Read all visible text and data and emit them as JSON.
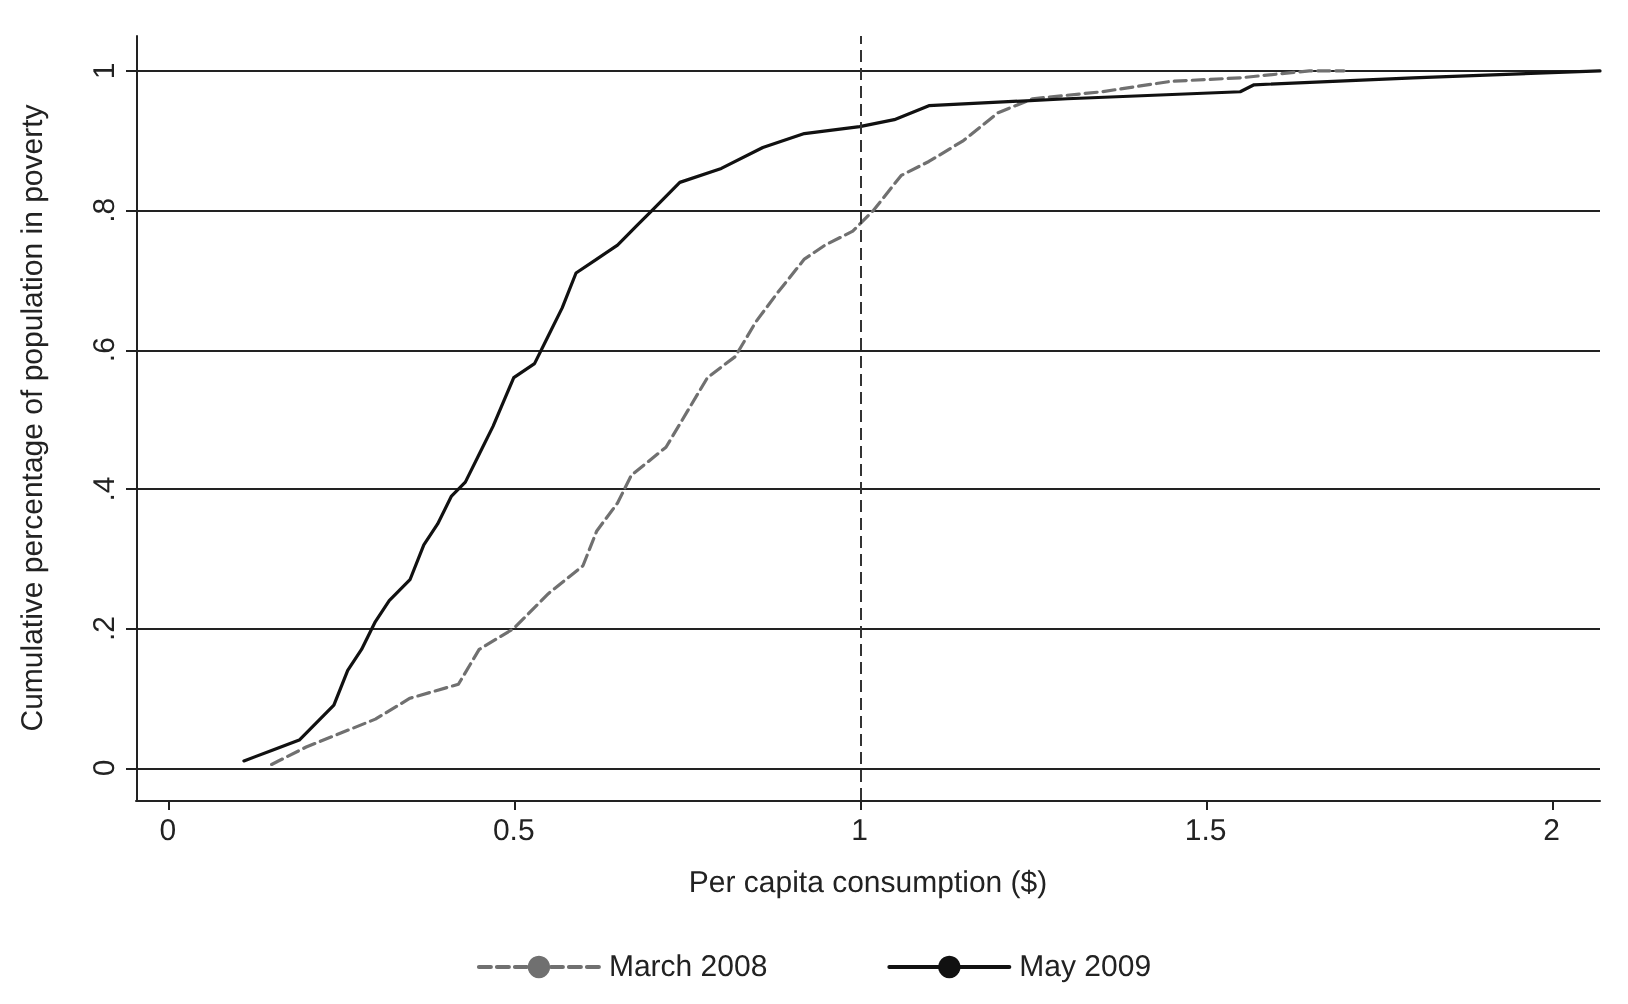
{
  "chart_data": {
    "type": "line",
    "xlabel": "Per capita consumption ($)",
    "ylabel": "Cumulative percentage of population in poverty",
    "xlim": [
      -0.046,
      2.07
    ],
    "xticks": [
      0,
      0.5,
      1,
      1.5,
      2
    ],
    "ylim": [
      -0.046,
      1.05
    ],
    "yticks": [
      0,
      {
        "value": 0.2,
        "label": ".2"
      },
      {
        "value": 0.4,
        "label": ".4"
      },
      {
        "value": 0.6,
        "label": ".6"
      },
      {
        "value": 0.8,
        "label": ".8"
      },
      1
    ],
    "grid": "y",
    "legend": "bottom",
    "marker": "none",
    "ref_lines": [
      {
        "axis": "x",
        "value": 1,
        "label": null,
        "color": "#333333",
        "line_style": "dashed"
      }
    ],
    "series": [
      {
        "name": "March 2008",
        "color": "#707070",
        "line_style": "dashed",
        "x": [
          0.15,
          0.2,
          0.25,
          0.3,
          0.35,
          0.42,
          0.45,
          0.5,
          0.55,
          0.6,
          0.62,
          0.65,
          0.67,
          0.72,
          0.75,
          0.78,
          0.82,
          0.85,
          0.88,
          0.92,
          0.95,
          0.99,
          1.02,
          1.06,
          1.1,
          1.15,
          1.2,
          1.25,
          1.35,
          1.45,
          1.55,
          1.65,
          1.7
        ],
        "values": [
          0.005,
          0.03,
          0.05,
          0.07,
          0.1,
          0.12,
          0.17,
          0.2,
          0.25,
          0.29,
          0.34,
          0.38,
          0.42,
          0.46,
          0.51,
          0.56,
          0.59,
          0.64,
          0.68,
          0.73,
          0.75,
          0.77,
          0.8,
          0.85,
          0.87,
          0.9,
          0.94,
          0.96,
          0.97,
          0.985,
          0.99,
          1,
          1
        ]
      },
      {
        "name": "May 2009",
        "color": "#111111",
        "line_style": "solid",
        "x": [
          0.11,
          0.15,
          0.19,
          0.22,
          0.24,
          0.26,
          0.28,
          0.3,
          0.32,
          0.35,
          0.37,
          0.39,
          0.41,
          0.43,
          0.45,
          0.47,
          0.5,
          0.53,
          0.55,
          0.57,
          0.59,
          0.62,
          0.65,
          0.68,
          0.7,
          0.72,
          0.74,
          0.8,
          0.86,
          0.92,
          1.0,
          1.05,
          1.1,
          1.3,
          1.55,
          1.57,
          1.8,
          2.07
        ],
        "values": [
          0.01,
          0.025,
          0.04,
          0.07,
          0.09,
          0.14,
          0.17,
          0.21,
          0.24,
          0.27,
          0.32,
          0.35,
          0.39,
          0.41,
          0.45,
          0.49,
          0.56,
          0.58,
          0.62,
          0.66,
          0.71,
          0.73,
          0.75,
          0.78,
          0.8,
          0.82,
          0.84,
          0.86,
          0.89,
          0.91,
          0.92,
          0.93,
          0.95,
          0.96,
          0.97,
          0.98,
          0.99,
          1.0
        ]
      }
    ]
  }
}
